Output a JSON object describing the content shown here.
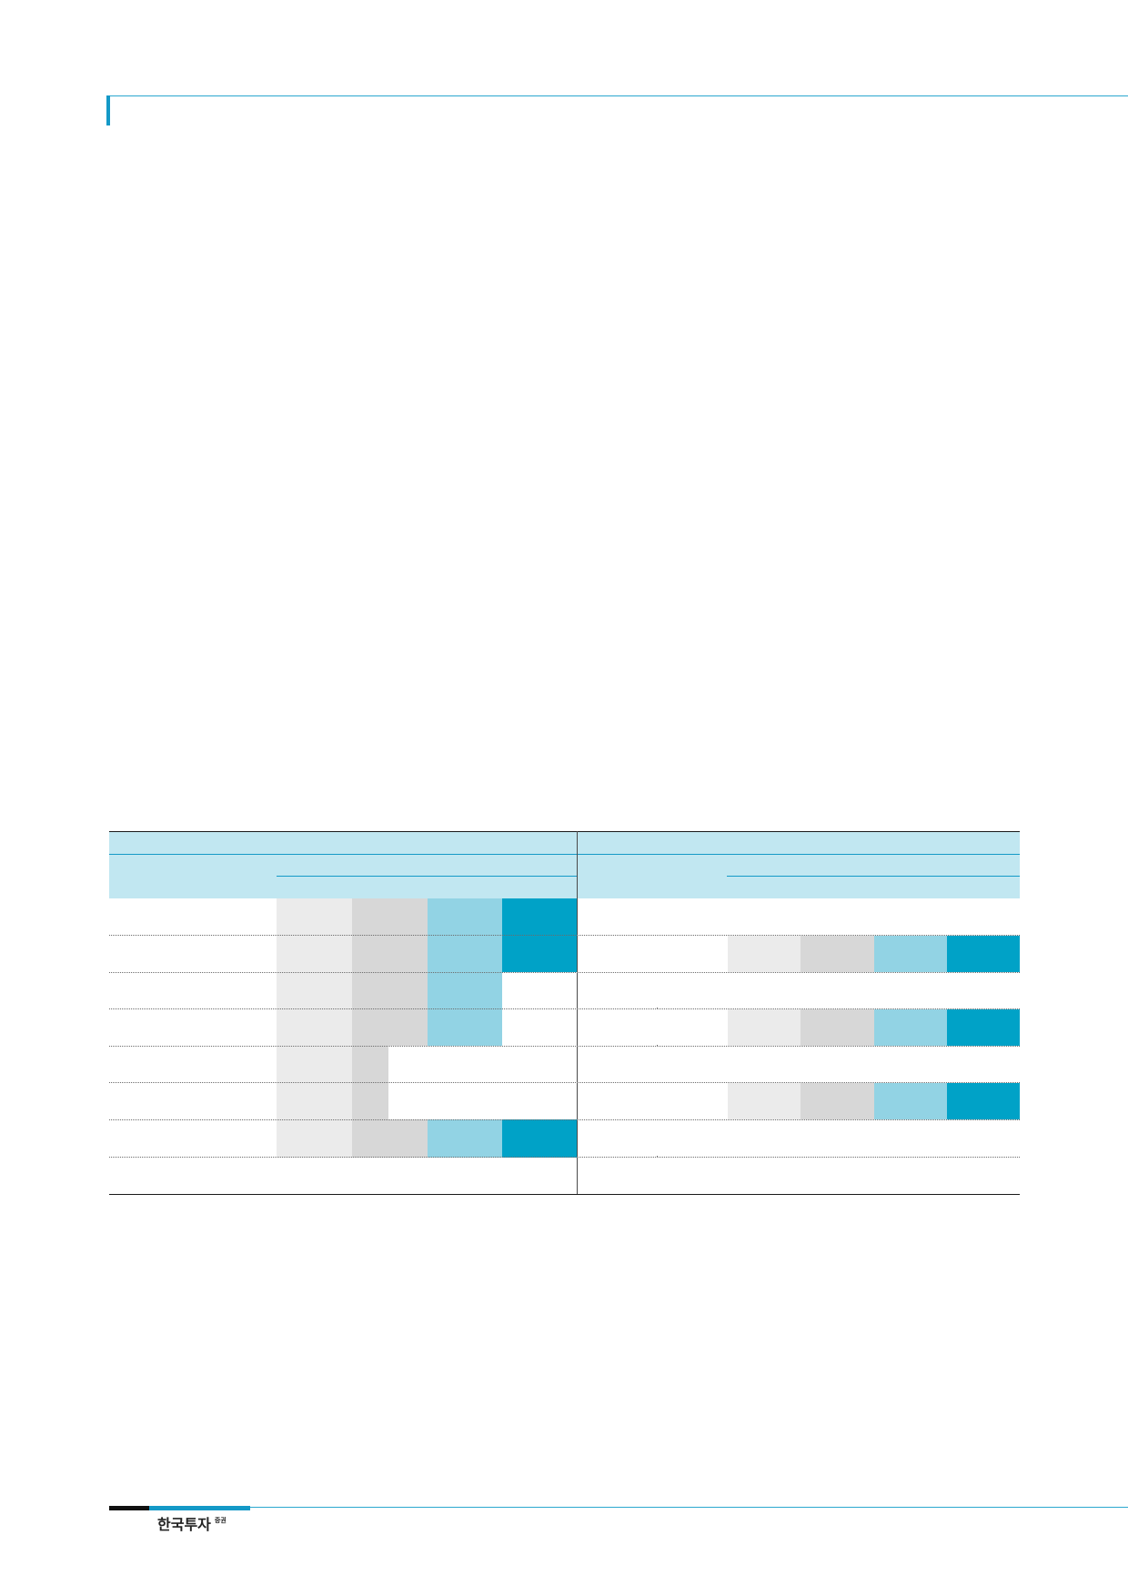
{
  "footer": {
    "logo_main": "한국투자",
    "logo_sup": "증권"
  },
  "colors": {
    "accent": "#1499c7",
    "header_band": "#c1e7f1",
    "shade_level_1": "#ebebeb",
    "shade_level_2": "#d7d7d7",
    "shade_level_3": "#92d3e4",
    "shade_level_4": "#00a2c7"
  }
}
